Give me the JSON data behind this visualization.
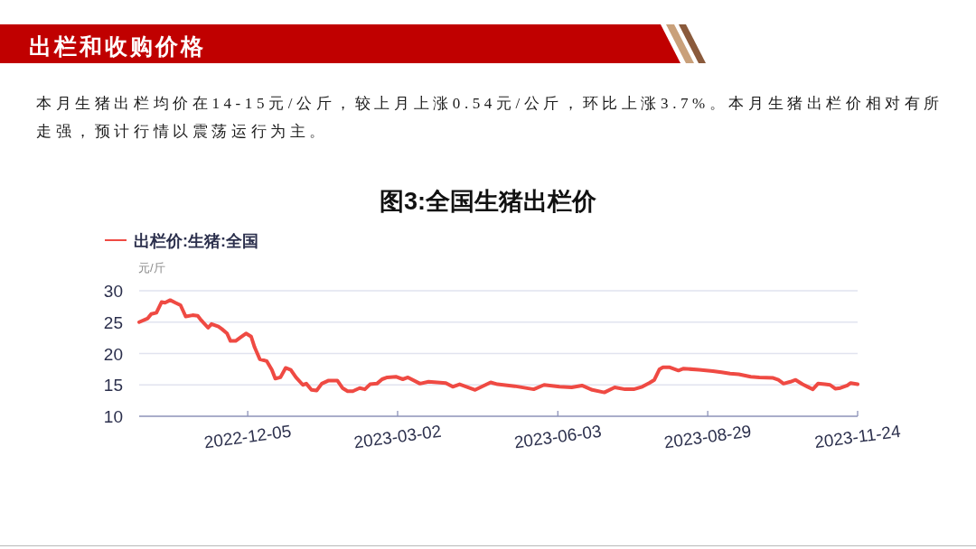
{
  "chart_data": {
    "type": "line",
    "title": "图3:全国生猪出栏价",
    "annotations": [
      "出栏和收购价格",
      "本月生猪出栏均价在14-15元/公斤，较上月上涨0.54元/公斤，环比上涨3.7%。本月生猪出栏价相对有所走强，预计行情以震荡运行为主。"
    ],
    "ylabel": "元/斤",
    "x": [
      "2022-10-03",
      "2022-10-08",
      "2022-10-10",
      "2022-10-13",
      "2022-10-16",
      "2022-10-18",
      "2022-10-21",
      "2022-10-24",
      "2022-10-27",
      "2022-10-30",
      "2022-11-03",
      "2022-11-06",
      "2022-11-08",
      "2022-11-12",
      "2022-11-14",
      "2022-11-18",
      "2022-11-20",
      "2022-11-23",
      "2022-11-25",
      "2022-11-28",
      "2022-12-01",
      "2022-12-04",
      "2022-12-07",
      "2022-12-09",
      "2022-12-12",
      "2022-12-16",
      "2022-12-19",
      "2022-12-21",
      "2022-12-24",
      "2022-12-27",
      "2022-12-30",
      "2023-01-02",
      "2023-01-06",
      "2023-01-08",
      "2023-01-11",
      "2023-01-14",
      "2023-01-17",
      "2023-01-21",
      "2023-01-26",
      "2023-01-29",
      "2023-02-01",
      "2023-02-04",
      "2023-02-08",
      "2023-02-11",
      "2023-02-14",
      "2023-02-18",
      "2023-02-21",
      "2023-02-24",
      "2023-03-01",
      "2023-03-05",
      "2023-03-08",
      "2023-03-15",
      "2023-03-20",
      "2023-03-30",
      "2023-04-03",
      "2023-04-07",
      "2023-04-16",
      "2023-04-22",
      "2023-04-25",
      "2023-04-29",
      "2023-05-09",
      "2023-05-20",
      "2023-05-26",
      "2023-06-04",
      "2023-06-11",
      "2023-06-17",
      "2023-06-23",
      "2023-06-30",
      "2023-07-06",
      "2023-07-12",
      "2023-07-17",
      "2023-07-22",
      "2023-07-26",
      "2023-07-29",
      "2023-08-01",
      "2023-08-03",
      "2023-08-07",
      "2023-08-12",
      "2023-08-15",
      "2023-08-24",
      "2023-09-01",
      "2023-09-06",
      "2023-09-11",
      "2023-09-16",
      "2023-09-23",
      "2023-09-28",
      "2023-10-06",
      "2023-10-09",
      "2023-10-12",
      "2023-10-16",
      "2023-10-19",
      "2023-10-23",
      "2023-10-26",
      "2023-10-29",
      "2023-11-01",
      "2023-11-05",
      "2023-11-08",
      "2023-11-11",
      "2023-11-14",
      "2023-11-18",
      "2023-11-20",
      "2023-11-24"
    ],
    "series": [
      {
        "name": "出栏价:生猪:全国",
        "color": "#ef4a43",
        "values": [
          25.0,
          25.6,
          26.3,
          26.5,
          28.2,
          28.1,
          28.5,
          28.1,
          27.7,
          25.9,
          26.1,
          26.0,
          25.3,
          24.1,
          24.7,
          24.3,
          23.9,
          23.2,
          22.0,
          22.0,
          22.6,
          23.2,
          22.7,
          21.0,
          19.1,
          18.8,
          17.4,
          16.0,
          16.2,
          17.7,
          17.4,
          16.2,
          15.0,
          15.2,
          14.2,
          14.1,
          15.2,
          15.7,
          15.7,
          14.5,
          14.0,
          14.0,
          14.5,
          14.3,
          15.1,
          15.2,
          15.9,
          16.2,
          16.3,
          15.9,
          16.2,
          15.2,
          15.5,
          15.3,
          14.7,
          15.1,
          14.2,
          15.0,
          15.4,
          15.1,
          14.8,
          14.3,
          15.0,
          14.7,
          14.6,
          14.9,
          14.2,
          13.8,
          14.6,
          14.3,
          14.3,
          14.7,
          15.3,
          15.8,
          17.5,
          17.8,
          17.8,
          17.3,
          17.6,
          17.4,
          17.2,
          17.0,
          16.8,
          16.7,
          16.3,
          16.2,
          16.1,
          15.8,
          15.2,
          15.5,
          15.8,
          15.1,
          14.7,
          14.3,
          15.2,
          15.1,
          15.0,
          14.4,
          14.5,
          14.9,
          15.3,
          15.1
        ]
      }
    ],
    "xlim": [
      "2022-10-03",
      "2023-11-24"
    ],
    "ylim": [
      10,
      30
    ],
    "xticks": [
      "2022-12-05",
      "2023-03-02",
      "2023-06-03",
      "2023-08-29",
      "2023-11-24"
    ],
    "yticks": [
      10,
      15,
      20,
      25,
      30
    ],
    "grid": "y",
    "legend": "top left",
    "marker": "none",
    "line_style": "solid"
  }
}
